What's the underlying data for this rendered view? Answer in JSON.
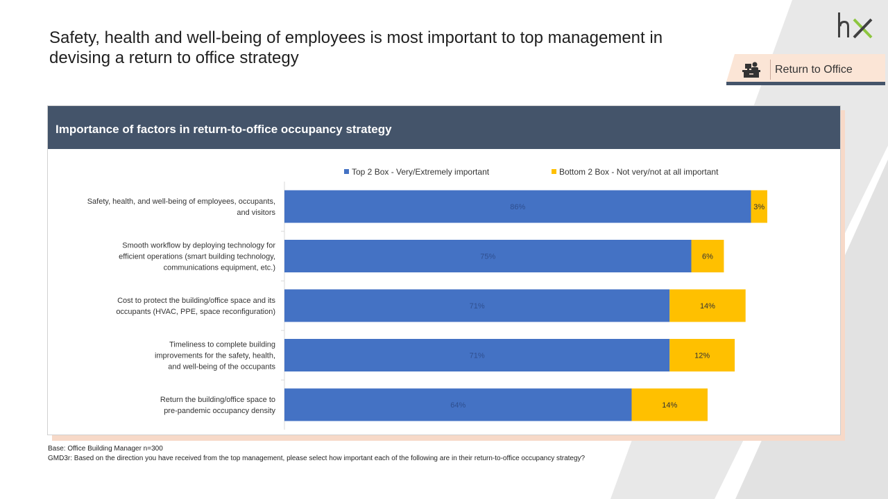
{
  "slide": {
    "headline": "Safety, health and well-being of employees is most important to top management in devising a return to office strategy",
    "section_tag": "Return to Office",
    "logo_icon": "hx-logo",
    "tag_icon": "office-desk-icon"
  },
  "footnotes": {
    "base": "Base: Office Building Manager n=300",
    "question": "GMD3r: Based on the direction you have received from the top management, please select how important each of the following are in their return-to-office occupancy strategy?"
  },
  "colors": {
    "header_bg": "#44546a",
    "top2": "#4472c4",
    "bottom2": "#ffc000",
    "tag_bg": "#fbe5d6",
    "accent_line": "#44546a"
  },
  "chart_data": {
    "type": "bar",
    "orientation": "horizontal",
    "stacked": true,
    "title": "Importance of factors in return-to-office  occupancy strategy",
    "legend_position": "top",
    "categories": [
      [
        "Safety, health, and well-being of employees, occupants,",
        "and visitors"
      ],
      [
        "Smooth workflow by deploying technology for",
        "efficient operations (smart building technology,",
        "communications equipment, etc.)"
      ],
      [
        "Cost to protect the building/office space and its",
        "occupants (HVAC, PPE, space reconfiguration)"
      ],
      [
        "Timeliness to complete building",
        "improvements for the safety, health,",
        "and well-being of the occupants"
      ],
      [
        "Return the building/office space to",
        "pre-pandemic occupancy density"
      ]
    ],
    "series": [
      {
        "name": "Top 2 Box - Very/Extremely important",
        "values": [
          86,
          75,
          71,
          71,
          64
        ],
        "labels": [
          "86%",
          "75%",
          "71%",
          "71%",
          "64%"
        ]
      },
      {
        "name": "Bottom 2 Box - Not very/not at all important",
        "values": [
          3,
          6,
          14,
          12,
          14
        ],
        "labels": [
          "3%",
          "6%",
          "14%",
          "12%",
          "14%"
        ]
      }
    ],
    "xlim": [
      0,
      100
    ],
    "grid": false
  }
}
